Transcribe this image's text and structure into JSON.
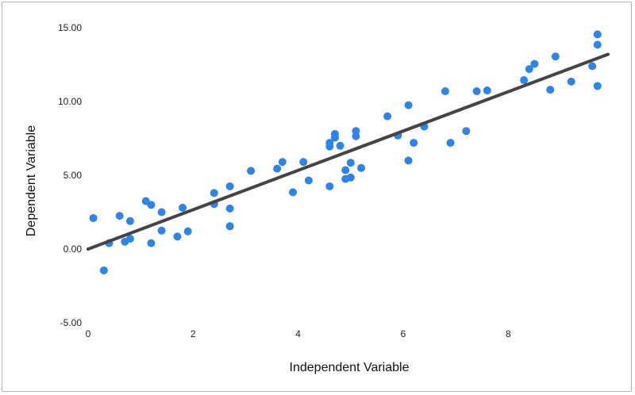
{
  "chart_data": {
    "type": "scatter",
    "title": "",
    "xlabel": "Independent Variable",
    "ylabel": "Dependent Variable",
    "xlim": [
      0,
      9.9
    ],
    "ylim": [
      -5,
      15
    ],
    "x_ticks": [
      0,
      2,
      4,
      6,
      8
    ],
    "x_tick_labels": [
      "0",
      "2",
      "4",
      "6",
      "8"
    ],
    "y_ticks": [
      -5,
      0,
      5,
      10,
      15
    ],
    "y_tick_labels": [
      "-5.00",
      "0.00",
      "5.00",
      "10.00",
      "15.00"
    ],
    "grid": false,
    "legend": "none",
    "colors": {
      "points": "#2b84f0",
      "trendline": "#444444"
    },
    "series": [
      {
        "x": [
          0.1,
          0.3,
          0.4,
          0.6,
          0.7,
          0.8,
          0.8,
          1.1,
          1.2,
          1.2,
          1.4,
          1.4,
          1.7,
          1.8,
          1.9,
          2.4,
          2.4,
          2.7,
          2.7,
          2.7,
          3.1,
          3.6,
          3.7,
          3.9,
          4.1,
          4.2,
          4.6,
          4.6,
          4.6,
          4.7,
          4.7,
          4.8,
          4.9,
          4.9,
          5.0,
          5.0,
          5.1,
          5.1,
          5.2,
          5.7,
          5.9,
          6.1,
          6.1,
          6.2,
          6.4,
          6.8,
          6.9,
          7.2,
          7.4,
          7.6,
          8.3,
          8.4,
          8.5,
          8.8,
          8.9,
          9.2,
          9.6,
          9.7,
          9.7,
          9.7
        ],
        "y": [
          2.1,
          -1.45,
          0.4,
          2.25,
          0.5,
          0.7,
          1.9,
          3.25,
          0.4,
          3.0,
          2.5,
          1.25,
          0.85,
          2.8,
          1.2,
          3.8,
          3.05,
          4.25,
          2.75,
          1.55,
          5.3,
          5.45,
          5.9,
          3.85,
          5.9,
          4.65,
          7.2,
          6.95,
          4.25,
          7.8,
          7.55,
          7.0,
          5.35,
          4.75,
          5.85,
          4.85,
          8.0,
          7.65,
          5.5,
          9.0,
          7.7,
          9.75,
          6.0,
          7.2,
          8.3,
          10.7,
          7.2,
          8.0,
          10.7,
          10.75,
          11.45,
          12.2,
          12.55,
          10.8,
          13.05,
          11.35,
          12.4,
          14.55,
          13.85,
          11.05
        ]
      }
    ],
    "trendline": {
      "x": [
        0,
        9.9
      ],
      "y": [
        0.0,
        13.2
      ]
    }
  }
}
